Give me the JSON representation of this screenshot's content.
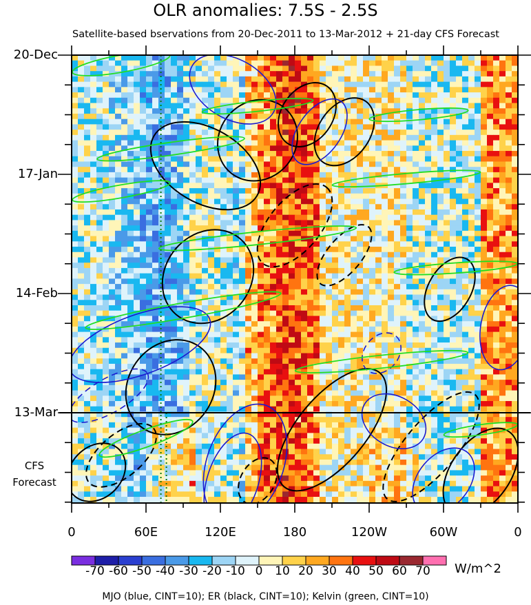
{
  "chart_data": {
    "type": "heatmap",
    "title": "OLR anomalies: 7.5S - 2.5S",
    "subtitle": "Satellite-based bservations from 20-Dec-2011 to 13-Mar-2012 + 21-day CFS Forecast",
    "x_tick_labels": [
      "0",
      "60E",
      "120E",
      "180",
      "120W",
      "60W",
      "0"
    ],
    "x_tick_longitudes": [
      0,
      60,
      120,
      180,
      240,
      300,
      360
    ],
    "x_range": [
      0,
      360
    ],
    "y_tick_labels": [
      "20-Dec",
      "17-Jan",
      "14-Feb",
      "13-Mar"
    ],
    "y_tick_days": [
      0,
      28,
      56,
      84
    ],
    "y_range_days": [
      0,
      105
    ],
    "forecast_start_day": 84,
    "forecast_label_line1": "CFS",
    "forecast_label_line2": "Forecast",
    "colorbar": {
      "levels": [
        -70,
        -60,
        -50,
        -40,
        -30,
        -20,
        -10,
        0,
        10,
        20,
        30,
        40,
        50,
        60,
        70
      ],
      "labels": [
        "-70",
        "-60",
        "-50",
        "-40",
        "-30",
        "-20",
        "-10",
        "0",
        "10",
        "20",
        "30",
        "40",
        "50",
        "60",
        "70"
      ],
      "colors": [
        "#7a2ee0",
        "#1e1ea8",
        "#2a3fd0",
        "#3a6ee0",
        "#4a9ae8",
        "#19b8f0",
        "#9dd5f5",
        "#dff3fb",
        "#fff5b8",
        "#ffd24a",
        "#ffa820",
        "#ff7410",
        "#e81010",
        "#bf0a14",
        "#9a2830",
        "#ff6fb0"
      ],
      "units": "W/m^2"
    },
    "legend_text": "MJO (blue, CINT=10); ER (black, CINT=10); Kelvin (green, CINT=10)",
    "series_colors": {
      "mjo": "#1a1ad0",
      "er": "#000000",
      "kelvin": "#22dd22"
    },
    "marker_longitude_dotted": 72,
    "background_regions": [
      {
        "lon_start": 0,
        "lon_end": 140,
        "tendency": "mixed, mostly negative"
      },
      {
        "lon_start": 150,
        "lon_end": 200,
        "tendency": "strongly positive"
      },
      {
        "lon_start": 200,
        "lon_end": 270,
        "tendency": "near zero / weakly positive"
      },
      {
        "lon_start": 270,
        "lon_end": 330,
        "tendency": "mixed, weakly negative"
      },
      {
        "lon_start": 330,
        "lon_end": 360,
        "tendency": "positive"
      }
    ],
    "er_contours": [
      {
        "lon": 108,
        "day": 26,
        "rlon": 30,
        "rday": 14,
        "angle": -60,
        "dash": false
      },
      {
        "lon": 150,
        "day": 20,
        "rlon": 34,
        "rday": 9,
        "angle": -50,
        "dash": false
      },
      {
        "lon": 190,
        "day": 14,
        "rlon": 28,
        "rday": 6,
        "angle": -55,
        "dash": false
      },
      {
        "lon": 220,
        "day": 18,
        "rlon": 30,
        "rday": 6,
        "angle": -55,
        "dash": false
      },
      {
        "lon": 110,
        "day": 52,
        "rlon": 40,
        "rday": 10,
        "angle": -50,
        "dash": false
      },
      {
        "lon": 180,
        "day": 40,
        "rlon": 40,
        "rday": 6,
        "angle": -50,
        "dash": true
      },
      {
        "lon": 220,
        "day": 47,
        "rlon": 30,
        "rday": 4,
        "angle": -50,
        "dash": true
      },
      {
        "lon": 305,
        "day": 55,
        "rlon": 28,
        "rday": 5,
        "angle": -60,
        "dash": false
      },
      {
        "lon": 80,
        "day": 78,
        "rlon": 40,
        "rday": 10,
        "angle": -55,
        "dash": false
      },
      {
        "lon": 210,
        "day": 88,
        "rlon": 60,
        "rday": 8,
        "angle": -50,
        "dash": false
      },
      {
        "lon": 40,
        "day": 94,
        "rlon": 34,
        "rday": 5,
        "angle": -40,
        "dash": true
      },
      {
        "lon": 290,
        "day": 92,
        "rlon": 55,
        "rday": 6,
        "angle": -50,
        "dash": true
      },
      {
        "lon": 330,
        "day": 98,
        "rlon": 40,
        "rday": 7,
        "angle": -55,
        "dash": false
      },
      {
        "lon": 150,
        "day": 100,
        "rlon": 20,
        "rday": 4,
        "angle": -60,
        "dash": true
      },
      {
        "lon": 20,
        "day": 98,
        "rlon": 26,
        "rday": 6,
        "angle": -45,
        "dash": false
      }
    ],
    "mjo_contours": [
      {
        "lon": 130,
        "day": 8,
        "rlon": 24,
        "rday": 11,
        "angle": -60,
        "dash": false
      },
      {
        "lon": 200,
        "day": 18,
        "rlon": 30,
        "rday": 5,
        "angle": -55,
        "dash": false
      },
      {
        "lon": 55,
        "day": 68,
        "rlon": 60,
        "rday": 7,
        "angle": -20,
        "dash": false
      },
      {
        "lon": 140,
        "day": 96,
        "rlon": 50,
        "rday": 9,
        "angle": -70,
        "dash": false
      },
      {
        "lon": 130,
        "day": 100,
        "rlon": 40,
        "rday": 6,
        "angle": -72,
        "dash": false
      },
      {
        "lon": 260,
        "day": 86,
        "rlon": 20,
        "rday": 8,
        "angle": -60,
        "dash": false
      },
      {
        "lon": 350,
        "day": 64,
        "rlon": 20,
        "rday": 10,
        "angle": 10,
        "dash": false
      },
      {
        "lon": 300,
        "day": 100,
        "rlon": 30,
        "rday": 6,
        "angle": -50,
        "dash": false
      },
      {
        "lon": 250,
        "day": 70,
        "rlon": 18,
        "rday": 4,
        "angle": -50,
        "dash": true
      },
      {
        "lon": 30,
        "day": 80,
        "rlon": 36,
        "rday": 4,
        "angle": -30,
        "dash": true
      }
    ],
    "kelvin_contours": [
      {
        "lon": 40,
        "day": 2,
        "rlon": 40,
        "rday": 2,
        "angle": -10
      },
      {
        "lon": 150,
        "day": 12,
        "rlon": 45,
        "rday": 1.2,
        "angle": -6
      },
      {
        "lon": 280,
        "day": 14,
        "rlon": 40,
        "rday": 1.2,
        "angle": -5
      },
      {
        "lon": 80,
        "day": 22,
        "rlon": 60,
        "rday": 1.5,
        "angle": -8
      },
      {
        "lon": 270,
        "day": 29,
        "rlon": 60,
        "rday": 1.2,
        "angle": -5
      },
      {
        "lon": 40,
        "day": 32,
        "rlon": 40,
        "rday": 1.5,
        "angle": -10
      },
      {
        "lon": 150,
        "day": 43,
        "rlon": 80,
        "rday": 1.5,
        "angle": -6
      },
      {
        "lon": 310,
        "day": 50,
        "rlon": 50,
        "rday": 1.2,
        "angle": -4
      },
      {
        "lon": 90,
        "day": 60,
        "rlon": 80,
        "rday": 1.8,
        "angle": -10
      },
      {
        "lon": 250,
        "day": 72,
        "rlon": 70,
        "rday": 1.5,
        "angle": -6
      },
      {
        "lon": 60,
        "day": 90,
        "rlon": 40,
        "rday": 2,
        "angle": -20
      },
      {
        "lon": 330,
        "day": 88,
        "rlon": 30,
        "rday": 1.2,
        "angle": -8
      }
    ]
  }
}
